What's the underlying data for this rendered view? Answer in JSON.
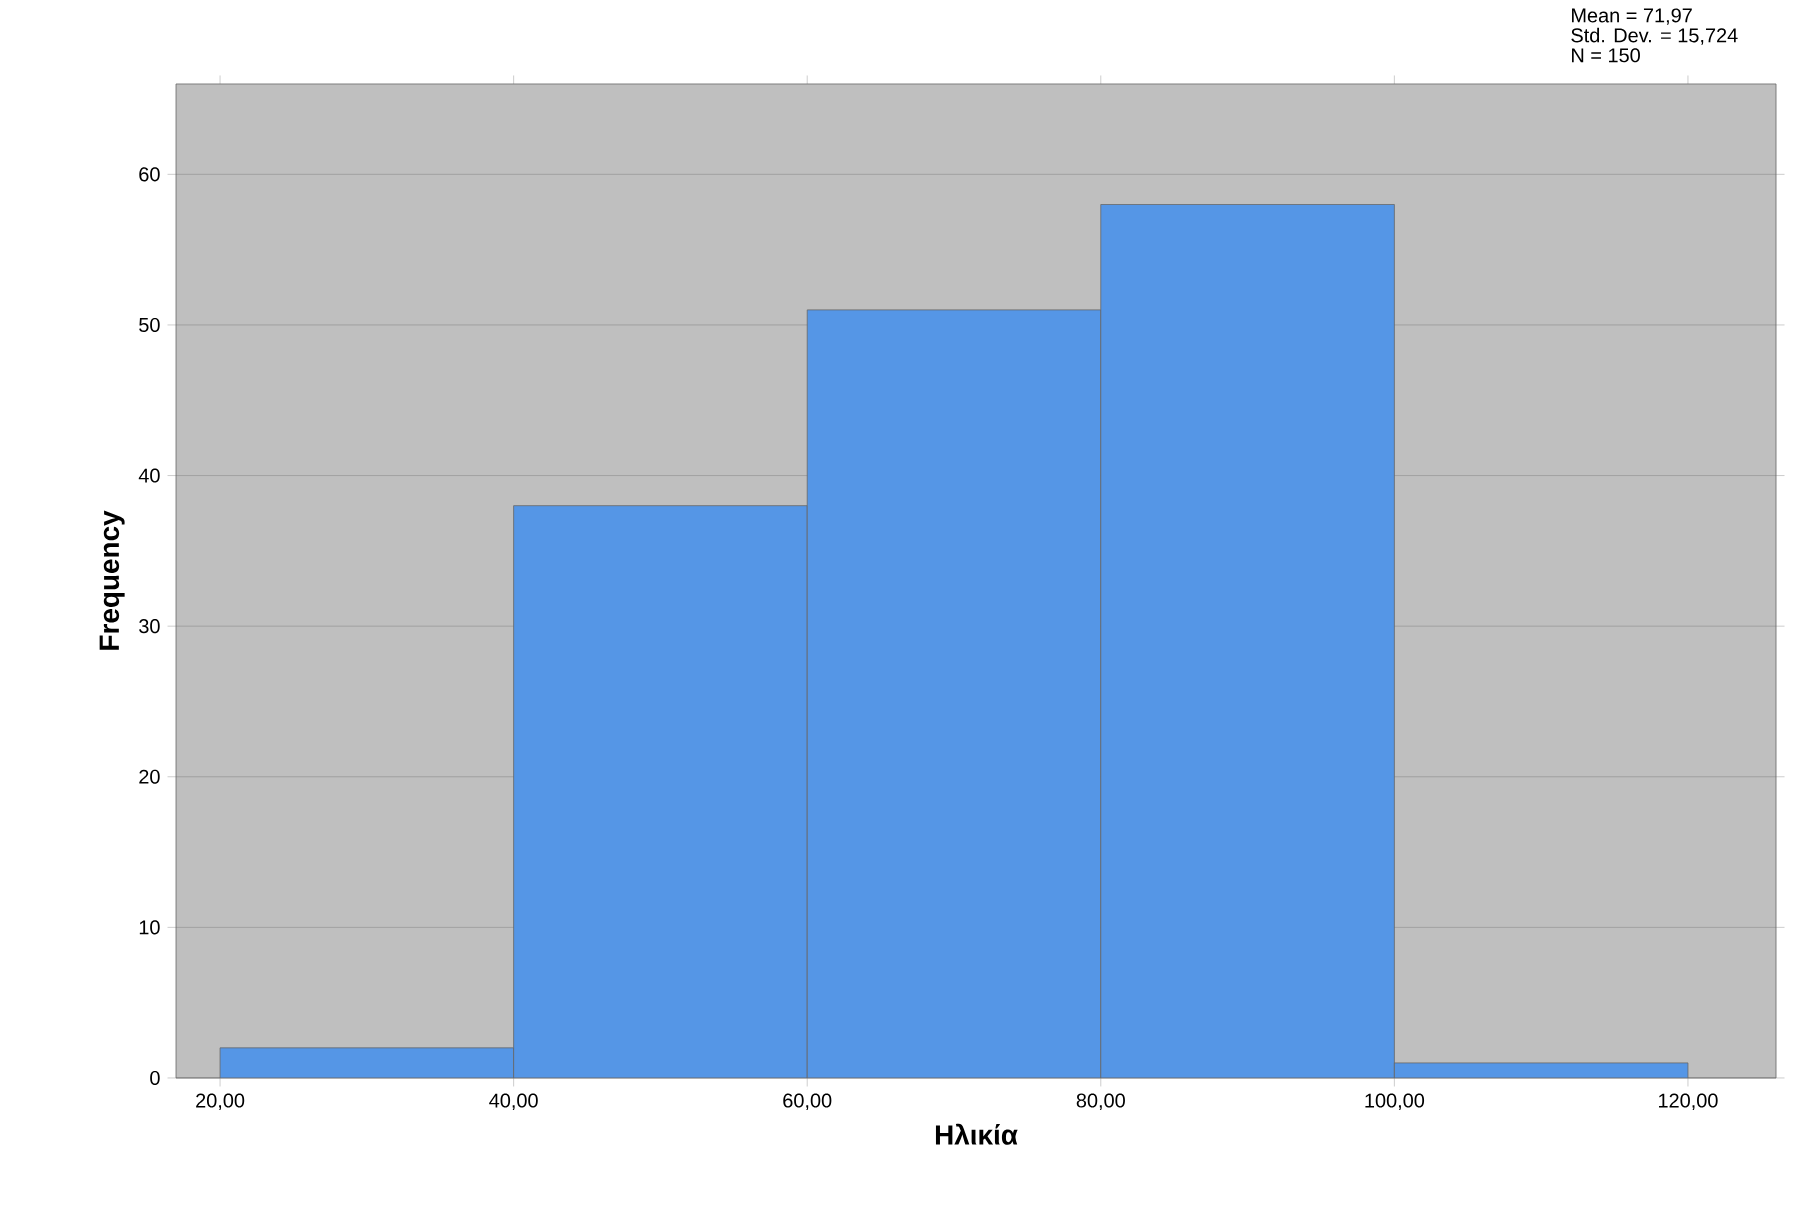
{
  "chart_data": {
    "type": "histogram",
    "xlabel": "Ηλικία",
    "ylabel": "Frequency",
    "bins": [
      20,
      40,
      60,
      80,
      100,
      120
    ],
    "values": [
      2,
      38,
      51,
      58,
      1
    ],
    "color": "#5596e6",
    "xlim": [
      17,
      126
    ],
    "ylim": [
      0,
      66
    ],
    "xticks": [
      {
        "value": 20,
        "label": "20,00"
      },
      {
        "value": 40,
        "label": "40,00"
      },
      {
        "value": 60,
        "label": "60,00"
      },
      {
        "value": 80,
        "label": "80,00"
      },
      {
        "value": 100,
        "label": "100,00"
      },
      {
        "value": 120,
        "label": "120,00"
      }
    ],
    "yticks": [
      0,
      10,
      20,
      30,
      40,
      50,
      60
    ],
    "grid": "y",
    "annotations": [
      "Mean = 71,97",
      "Std. Dev. = 15,724",
      "N = 150"
    ]
  }
}
